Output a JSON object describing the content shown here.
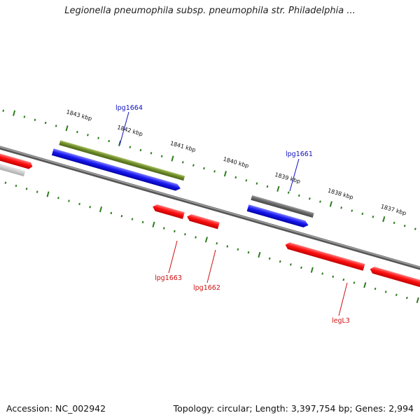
{
  "title": "Legionella pneumophila subsp. pneumophila str. Philadelphia ...",
  "footer": {
    "accession": "Accession: NC_002942",
    "topology": "Topology: circular; Length: 3,397,754 bp; Genes: 2,994"
  },
  "colors": {
    "forward_gene": "#1a1af0",
    "reverse_gene": "#f01010",
    "highlight_gene": "#6e8c2a",
    "grey_gene": "#666666",
    "tick": "#2e7d1e",
    "backbone": "#777777",
    "forward_label": "#1010c0",
    "reverse_label": "#d01010"
  },
  "kbp_labels": [
    "1843 kbp",
    "1842 kbp",
    "1841 kbp",
    "1840 kbp",
    "1839 kbp",
    "1838 kbp",
    "1837 kbp"
  ],
  "gene_labels": {
    "forward": [
      "lpg1664",
      "lpg1661"
    ],
    "reverse": [
      "lpg1663",
      "lpg1662",
      "legL3"
    ]
  }
}
